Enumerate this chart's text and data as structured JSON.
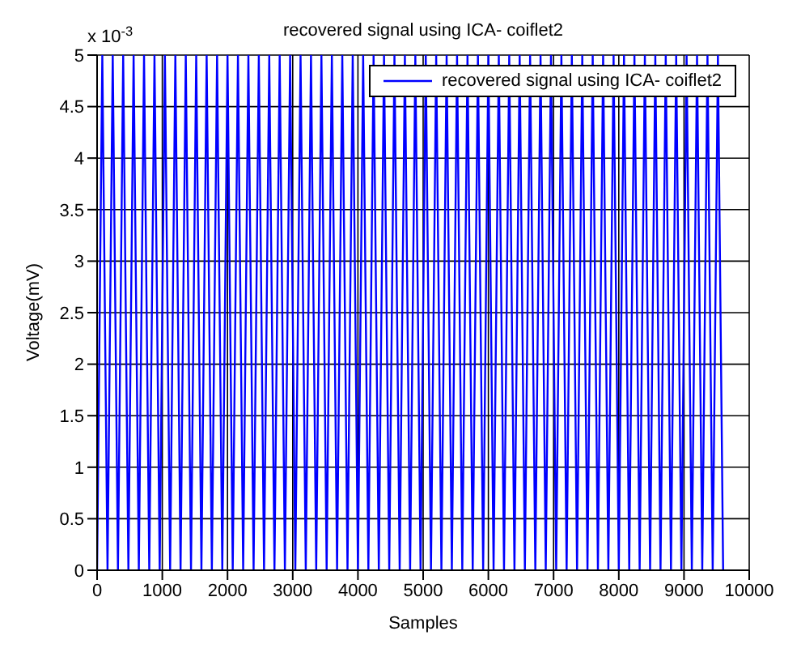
{
  "chart_data": {
    "type": "line",
    "title": "recovered signal using ICA- coiflet2",
    "xlabel": "Samples",
    "ylabel": "Voltage(mV)",
    "annotations": [
      "x 10$^{-3}$"
    ],
    "x": [
      0,
      80,
      160,
      240,
      320,
      400,
      480,
      560,
      640,
      720,
      800,
      880,
      960,
      1040,
      1120,
      1200,
      1280,
      1360,
      1440,
      1520,
      1600,
      1680,
      1760,
      1840,
      1920,
      2000,
      2080,
      2160,
      2240,
      2320,
      2400,
      2480,
      2560,
      2640,
      2720,
      2800,
      2880,
      2960,
      3040,
      3120,
      3200,
      3280,
      3360,
      3440,
      3520,
      3600,
      3680,
      3760,
      3840,
      3920,
      4000,
      4080,
      4160,
      4240,
      4320,
      4400,
      4480,
      4560,
      4640,
      4720,
      4800,
      4880,
      4960,
      5040,
      5120,
      5200,
      5280,
      5360,
      5440,
      5520,
      5600,
      5680,
      5760,
      5840,
      5920,
      6000,
      6080,
      6160,
      6240,
      6320,
      6400,
      6480,
      6560,
      6640,
      6720,
      6800,
      6880,
      6960,
      7040,
      7120,
      7200,
      7280,
      7360,
      7440,
      7520,
      7600,
      7680,
      7760,
      7840,
      7920,
      8000,
      8080,
      8160,
      8240,
      8320,
      8400,
      8480,
      8560,
      8640,
      8720,
      8800,
      8880,
      8960,
      9040,
      9120,
      9200,
      9280,
      9360,
      9440,
      9520,
      9600
    ],
    "series": [
      {
        "name": "recovered signal using ICA- coiflet2",
        "color": "#0000ff",
        "values": [
          0,
          5,
          0,
          5,
          0,
          5,
          0,
          5,
          0,
          5,
          0,
          5,
          0,
          5,
          0,
          5,
          0,
          5,
          0,
          5,
          0,
          5,
          0,
          5,
          0,
          5,
          0,
          5,
          0,
          5,
          0,
          5,
          0,
          5,
          0,
          5,
          0,
          5,
          0,
          5,
          0,
          5,
          0,
          5,
          0,
          5,
          0,
          5,
          0,
          5,
          0,
          5,
          0,
          5,
          0,
          5,
          0,
          5,
          0,
          5,
          0,
          5,
          0,
          5,
          0,
          5,
          0,
          5,
          0,
          5,
          0,
          5,
          0,
          5,
          0,
          5,
          0,
          5,
          0,
          5,
          0,
          5,
          0,
          5,
          0,
          5,
          0,
          5,
          0,
          5,
          0,
          5,
          0,
          5,
          0,
          5,
          0,
          5,
          0,
          5,
          0,
          5,
          0,
          5,
          0,
          5,
          0,
          5,
          0,
          5,
          0,
          5,
          0,
          5,
          0,
          5,
          0,
          5,
          0,
          5,
          0
        ]
      }
    ],
    "xlim": [
      0,
      10000
    ],
    "xticks": [
      0,
      1000,
      2000,
      3000,
      4000,
      5000,
      6000,
      7000,
      8000,
      9000,
      10000
    ],
    "ylim": [
      0,
      5
    ],
    "yticks": [
      0,
      0.5,
      1,
      1.5,
      2,
      2.5,
      3,
      3.5,
      4,
      4.5,
      5
    ],
    "grid": true,
    "legend": "top right",
    "marker": "none",
    "line_style": "solid"
  }
}
